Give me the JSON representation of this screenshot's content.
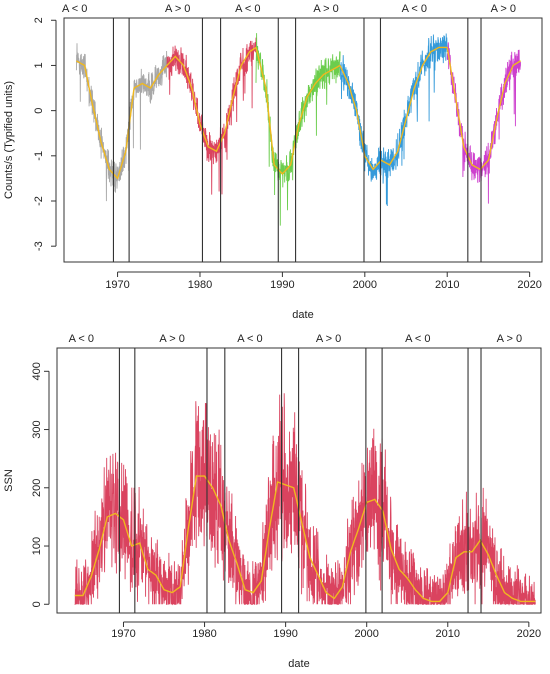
{
  "chart_data": [
    {
      "type": "line",
      "xlabel": "date",
      "ylabel": "Counts/s (Typified units)",
      "xlim": [
        1963.5,
        2021.5
      ],
      "ylim": [
        -3.35,
        2.05
      ],
      "xticks": [
        1970,
        1980,
        1990,
        2000,
        2010,
        2020
      ],
      "yticks": [
        -3,
        -2,
        -1,
        0,
        1,
        2
      ],
      "grid": false,
      "polarity_labels": [
        {
          "text": "A < 0",
          "x": 1964.8
        },
        {
          "text": "A > 0",
          "x": 1977.3
        },
        {
          "text": "A < 0",
          "x": 1985.8
        },
        {
          "text": "A > 0",
          "x": 1995.3
        },
        {
          "text": "A < 0",
          "x": 2006.0
        },
        {
          "text": "A > 0",
          "x": 2016.8
        }
      ],
      "reversal_lines": [
        1969.5,
        1971.4,
        1980.3,
        1982.5,
        1989.5,
        1991.6,
        1999.9,
        2001.9,
        2012.5,
        2014.1
      ],
      "series": [
        {
          "color": "#9e9e9e",
          "x": [
            1965.0,
            1966.0,
            1967.0,
            1968.0,
            1969.0,
            1970.0,
            1971.0,
            1972.0,
            1973.0,
            1974.0,
            1975.0,
            1976.0
          ],
          "values": [
            1.1,
            1.0,
            0.1,
            -0.7,
            -1.3,
            -1.5,
            -0.9,
            0.5,
            0.6,
            0.5,
            0.8,
            1.0
          ]
        },
        {
          "color": "#d62f4e",
          "x": [
            1976.0,
            1977.0,
            1978.0,
            1979.0,
            1980.0,
            1981.0,
            1982.0,
            1983.0,
            1984.0,
            1985.0,
            1986.0,
            1986.8
          ],
          "values": [
            1.0,
            1.2,
            1.0,
            0.5,
            -0.3,
            -0.8,
            -0.9,
            -0.5,
            0.3,
            1.0,
            1.3,
            1.4
          ]
        },
        {
          "color": "#5bc83a",
          "x": [
            1986.8,
            1988.0,
            1989.0,
            1990.0,
            1991.0,
            1992.0,
            1993.0,
            1994.0,
            1995.0,
            1996.0,
            1997.0
          ],
          "values": [
            1.4,
            0.5,
            -1.2,
            -1.4,
            -1.2,
            -0.3,
            0.3,
            0.6,
            0.8,
            0.9,
            1.0
          ]
        },
        {
          "color": "#1e8fd6",
          "x": [
            1997.0,
            1998.0,
            1999.0,
            2000.0,
            2001.0,
            2002.0,
            2003.0,
            2004.0,
            2005.0,
            2006.0,
            2007.0,
            2008.0,
            2009.0,
            2010.0
          ],
          "values": [
            1.0,
            0.6,
            0.0,
            -1.0,
            -1.3,
            -1.1,
            -1.2,
            -0.9,
            -0.2,
            0.5,
            1.0,
            1.3,
            1.4,
            1.4
          ]
        },
        {
          "color": "#c82ac8",
          "x": [
            2010.0,
            2011.0,
            2012.0,
            2013.0,
            2014.0,
            2015.0,
            2016.0,
            2017.0,
            2018.0,
            2018.9
          ],
          "values": [
            1.4,
            0.3,
            -0.8,
            -1.2,
            -1.3,
            -1.1,
            -0.2,
            0.6,
            1.0,
            1.1
          ]
        }
      ],
      "smooth_color": "#f0b81e"
    },
    {
      "type": "line",
      "xlabel": "date",
      "ylabel": "SSN",
      "xlim": [
        1961.8,
        2021.5
      ],
      "ylim": [
        -15,
        440
      ],
      "xticks": [
        1970,
        1980,
        1990,
        2000,
        2010,
        2020
      ],
      "yticks": [
        0,
        100,
        200,
        300,
        400
      ],
      "grid": false,
      "polarity_labels": [
        {
          "text": "A < 0",
          "x": 1964.8
        },
        {
          "text": "A > 0",
          "x": 1976.0
        },
        {
          "text": "A < 0",
          "x": 1985.6
        },
        {
          "text": "A > 0",
          "x": 1995.3
        },
        {
          "text": "A < 0",
          "x": 2006.3
        },
        {
          "text": "A > 0",
          "x": 2017.6
        }
      ],
      "reversal_lines": [
        1969.5,
        1971.4,
        1980.3,
        1982.5,
        1989.5,
        1991.6,
        1999.9,
        2001.9,
        2012.5,
        2014.1
      ],
      "series": [
        {
          "color": "#d62f4e",
          "x": [
            1964.0,
            1965.0,
            1966.0,
            1967.0,
            1968.0,
            1969.0,
            1970.0,
            1971.0,
            1972.0,
            1973.0,
            1974.0,
            1975.0,
            1976.0,
            1977.0,
            1978.0,
            1979.0,
            1980.0,
            1981.0,
            1982.0,
            1983.0,
            1984.0,
            1985.0,
            1986.0,
            1987.0,
            1988.0,
            1989.0,
            1990.0,
            1991.0,
            1992.0,
            1993.0,
            1994.0,
            1995.0,
            1996.0,
            1997.0,
            1998.0,
            1999.0,
            2000.0,
            2001.0,
            2002.0,
            2003.0,
            2004.0,
            2005.0,
            2006.0,
            2007.0,
            2008.0,
            2009.0,
            2010.0,
            2011.0,
            2012.0,
            2013.0,
            2014.0,
            2015.0,
            2016.0,
            2017.0,
            2018.0,
            2019.0,
            2020.0,
            2020.8
          ],
          "values": [
            15,
            15,
            47,
            94,
            150,
            156,
            145,
            100,
            105,
            60,
            50,
            25,
            20,
            30,
            130,
            220,
            220,
            200,
            170,
            110,
            70,
            25,
            20,
            40,
            130,
            210,
            205,
            200,
            140,
            80,
            50,
            20,
            10,
            30,
            90,
            130,
            175,
            180,
            160,
            95,
            60,
            45,
            25,
            10,
            5,
            5,
            20,
            80,
            90,
            90,
            110,
            85,
            50,
            20,
            10,
            5,
            5,
            5
          ]
        }
      ],
      "smooth_color": "#f0b81e"
    }
  ]
}
